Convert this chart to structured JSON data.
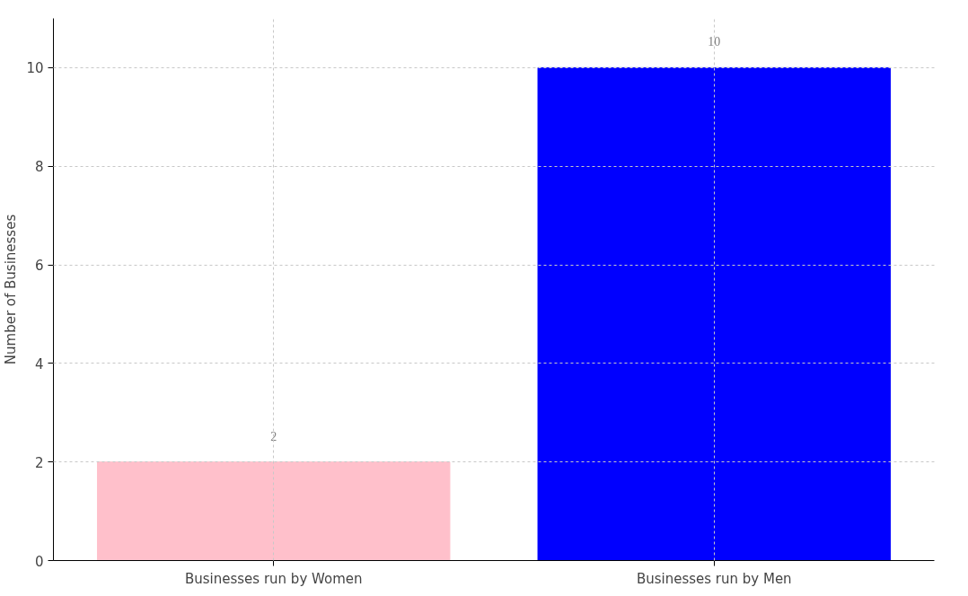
{
  "chart_data": {
    "type": "bar",
    "ylabel": "Number of Businesses",
    "categories": [
      "Businesses run by Women",
      "Businesses run by Men"
    ],
    "values": [
      2,
      10
    ],
    "colors": [
      "#ffc0cb",
      "#0000ff"
    ],
    "ylim": [
      0,
      11
    ],
    "yticks": [
      0,
      2,
      4,
      6,
      8,
      10
    ],
    "grid": true,
    "data_labels": true
  }
}
